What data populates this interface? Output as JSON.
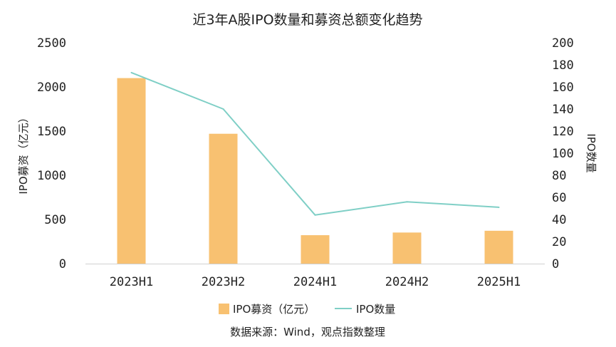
{
  "chart_data": {
    "type": "bar",
    "title": "近3年A股IPO数量和募资总额变化趋势",
    "categories": [
      "2023H1",
      "2023H2",
      "2024H1",
      "2024H2",
      "2025H1"
    ],
    "series": [
      {
        "name": "IPO募资（亿元）",
        "type": "bar",
        "axis": "left",
        "color": "#F8C171",
        "values": [
          2100,
          1470,
          322,
          352,
          372
        ]
      },
      {
        "name": "IPO数量",
        "type": "line",
        "axis": "right",
        "color": "#7FCFC6",
        "values": [
          173,
          140,
          44,
          56,
          51
        ]
      }
    ],
    "y_left": {
      "label": "IPO募资（亿元）",
      "ylim": [
        0,
        2500
      ],
      "ticks": [
        "0",
        "500",
        "1000",
        "1500",
        "2000",
        "2500"
      ]
    },
    "y_right": {
      "label": "IPO数量",
      "ylim": [
        0,
        200
      ],
      "ticks": [
        "0",
        "20",
        "40",
        "60",
        "80",
        "100",
        "120",
        "140",
        "160",
        "180",
        "200"
      ]
    },
    "legend": {
      "position": "bottom",
      "items": [
        "IPO募资（亿元）",
        "IPO数量"
      ]
    },
    "source": "数据来源：Wind，观点指数整理",
    "grid": false
  }
}
